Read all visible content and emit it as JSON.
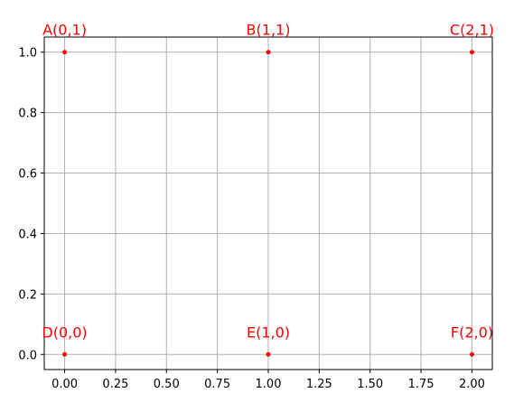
{
  "chart_data": {
    "type": "scatter",
    "title": "",
    "xlabel": "",
    "ylabel": "",
    "xlim": [
      -0.1,
      2.1
    ],
    "ylim": [
      -0.05,
      1.05
    ],
    "grid": true,
    "x_ticks": [
      "0.00",
      "0.25",
      "0.50",
      "0.75",
      "1.00",
      "1.25",
      "1.50",
      "1.75",
      "2.00"
    ],
    "y_ticks": [
      "0.0",
      "0.2",
      "0.4",
      "0.6",
      "0.8",
      "1.0"
    ],
    "x_tick_values": [
      0,
      0.25,
      0.5,
      0.75,
      1.0,
      1.25,
      1.5,
      1.75,
      2.0
    ],
    "y_tick_values": [
      0,
      0.2,
      0.4,
      0.6,
      0.8,
      1.0
    ],
    "points": [
      {
        "label": "A(0,1)",
        "x": 0,
        "y": 1
      },
      {
        "label": "B(1,1)",
        "x": 1,
        "y": 1
      },
      {
        "label": "C(2,1)",
        "x": 2,
        "y": 1
      },
      {
        "label": "D(0,0)",
        "x": 0,
        "y": 0
      },
      {
        "label": "E(1,0)",
        "x": 1,
        "y": 0
      },
      {
        "label": "F(2,0)",
        "x": 2,
        "y": 0
      }
    ],
    "colors": {
      "points": "#ff0000",
      "labels": "#ff0000",
      "grid": "#b0b0b0",
      "axes": "#000000"
    }
  }
}
